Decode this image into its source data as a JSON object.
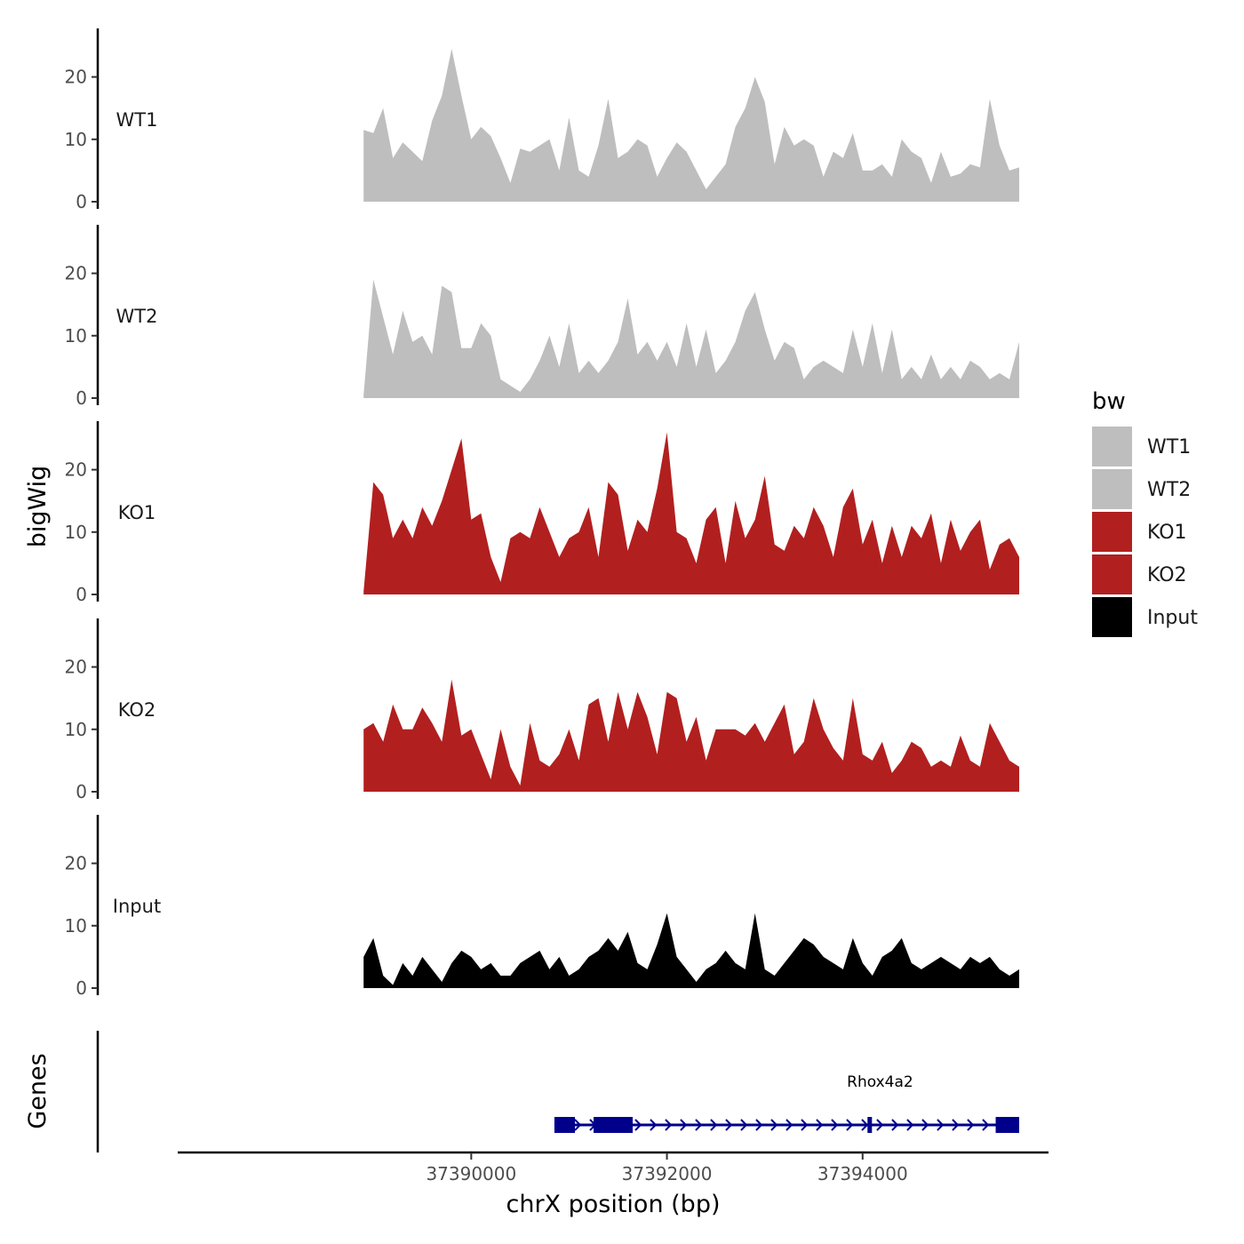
{
  "chart_data": {
    "type": "area",
    "xlabel": "chrX position (bp)",
    "ylabel": "bigWig",
    "genes_label": "Genes",
    "xlim": [
      37387000,
      37395900
    ],
    "ylim": [
      0,
      28
    ],
    "y_ticks": [
      "0",
      "10",
      "20"
    ],
    "x_ticks": [
      "37390000",
      "37392000",
      "37394000"
    ],
    "x_tick_values": [
      37390000,
      37392000,
      37394000
    ],
    "legend": {
      "title": "bw",
      "entries": [
        {
          "label": "WT1",
          "color": "#bebebe"
        },
        {
          "label": "WT2",
          "color": "#bebebe"
        },
        {
          "label": "KO1",
          "color": "#b21f1f"
        },
        {
          "label": "KO2",
          "color": "#b21f1f"
        },
        {
          "label": "Input",
          "color": "#000000"
        }
      ]
    },
    "series": [
      {
        "name": "WT1",
        "color": "#bebebe",
        "x": [
          37388900,
          37389000,
          37389100,
          37389200,
          37389300,
          37389400,
          37389500,
          37389600,
          37389700,
          37389800,
          37389900,
          37390000,
          37390100,
          37390200,
          37390300,
          37390400,
          37390500,
          37390600,
          37390700,
          37390800,
          37390900,
          37391000,
          37391100,
          37391200,
          37391300,
          37391400,
          37391500,
          37391600,
          37391700,
          37391800,
          37391900,
          37392000,
          37392100,
          37392200,
          37392300,
          37392400,
          37392500,
          37392600,
          37392700,
          37392800,
          37392900,
          37393000,
          37393100,
          37393200,
          37393300,
          37393400,
          37393500,
          37393600,
          37393700,
          37393800,
          37393900,
          37394000,
          37394100,
          37394200,
          37394300,
          37394400,
          37394500,
          37394600,
          37394700,
          37394800,
          37394900,
          37395000,
          37395100,
          37395200,
          37395300,
          37395400,
          37395500,
          37395600
        ],
        "values": [
          11.5,
          11,
          15,
          7,
          9.5,
          8,
          6.5,
          13,
          17,
          24.5,
          17,
          10,
          12,
          10.5,
          7,
          3,
          8.5,
          8,
          9,
          10,
          5,
          13.5,
          5,
          4,
          9,
          16.5,
          7,
          8,
          10,
          9,
          4,
          7,
          9.5,
          8,
          5,
          2,
          4,
          6,
          12,
          15,
          20,
          16,
          6,
          12,
          9,
          10,
          9,
          4,
          8,
          7,
          11,
          5,
          5,
          6,
          4,
          10,
          8,
          7,
          3,
          8,
          4,
          4.5,
          6,
          5.5,
          16.5,
          9,
          5,
          5.5
        ]
      },
      {
        "name": "WT2",
        "color": "#bebebe",
        "x": [
          37388900,
          37389000,
          37389100,
          37389200,
          37389300,
          37389400,
          37389500,
          37389600,
          37389700,
          37389800,
          37389900,
          37390000,
          37390100,
          37390200,
          37390300,
          37390400,
          37390500,
          37390600,
          37390700,
          37390800,
          37390900,
          37391000,
          37391100,
          37391200,
          37391300,
          37391400,
          37391500,
          37391600,
          37391700,
          37391800,
          37391900,
          37392000,
          37392100,
          37392200,
          37392300,
          37392400,
          37392500,
          37392600,
          37392700,
          37392800,
          37392900,
          37393000,
          37393100,
          37393200,
          37393300,
          37393400,
          37393500,
          37393600,
          37393700,
          37393800,
          37393900,
          37394000,
          37394100,
          37394200,
          37394300,
          37394400,
          37394500,
          37394600,
          37394700,
          37394800,
          37394900,
          37395000,
          37395100,
          37395200,
          37395300,
          37395400,
          37395500,
          37395600
        ],
        "values": [
          0.5,
          19,
          13,
          7,
          14,
          9,
          10,
          7,
          18,
          17,
          8,
          8,
          12,
          10,
          3,
          2,
          1,
          3,
          6,
          10,
          5,
          12,
          4,
          6,
          4,
          6,
          9,
          16,
          7,
          9,
          6,
          9,
          5,
          12,
          5,
          11,
          4,
          6,
          9,
          14,
          17,
          11,
          6,
          9,
          8,
          3,
          5,
          6,
          5,
          4,
          11,
          5,
          12,
          4,
          11,
          3,
          5,
          3,
          7,
          3,
          5,
          3,
          6,
          5,
          3,
          4,
          3,
          9
        ]
      },
      {
        "name": "KO1",
        "color": "#b21f1f",
        "x": [
          37388900,
          37389000,
          37389100,
          37389200,
          37389300,
          37389400,
          37389500,
          37389600,
          37389700,
          37389800,
          37389900,
          37390000,
          37390100,
          37390200,
          37390300,
          37390400,
          37390500,
          37390600,
          37390700,
          37390800,
          37390900,
          37391000,
          37391100,
          37391200,
          37391300,
          37391400,
          37391500,
          37391600,
          37391700,
          37391800,
          37391900,
          37392000,
          37392100,
          37392200,
          37392300,
          37392400,
          37392500,
          37392600,
          37392700,
          37392800,
          37392900,
          37393000,
          37393100,
          37393200,
          37393300,
          37393400,
          37393500,
          37393600,
          37393700,
          37393800,
          37393900,
          37394000,
          37394100,
          37394200,
          37394300,
          37394400,
          37394500,
          37394600,
          37394700,
          37394800,
          37394900,
          37395000,
          37395100,
          37395200,
          37395300,
          37395400,
          37395500,
          37395600
        ],
        "values": [
          0.5,
          18,
          16,
          9,
          12,
          9,
          14,
          11,
          15,
          20,
          25,
          12,
          13,
          6,
          2,
          9,
          10,
          9,
          14,
          10,
          6,
          9,
          10,
          14,
          6,
          18,
          16,
          7,
          12,
          10,
          17,
          26,
          10,
          9,
          5,
          12,
          14,
          5,
          15,
          9,
          12,
          19,
          8,
          7,
          11,
          9,
          14,
          11,
          6,
          14,
          17,
          8,
          12,
          5,
          11,
          6,
          11,
          9,
          13,
          5,
          12,
          7,
          10,
          12,
          4,
          8,
          9,
          6
        ]
      },
      {
        "name": "KO2",
        "color": "#b21f1f",
        "x": [
          37388900,
          37389000,
          37389100,
          37389200,
          37389300,
          37389400,
          37389500,
          37389600,
          37389700,
          37389800,
          37389900,
          37390000,
          37390100,
          37390200,
          37390300,
          37390400,
          37390500,
          37390600,
          37390700,
          37390800,
          37390900,
          37391000,
          37391100,
          37391200,
          37391300,
          37391400,
          37391500,
          37391600,
          37391700,
          37391800,
          37391900,
          37392000,
          37392100,
          37392200,
          37392300,
          37392400,
          37392500,
          37392600,
          37392700,
          37392800,
          37392900,
          37393000,
          37393100,
          37393200,
          37393300,
          37393400,
          37393500,
          37393600,
          37393700,
          37393800,
          37393900,
          37394000,
          37394100,
          37394200,
          37394300,
          37394400,
          37394500,
          37394600,
          37394700,
          37394800,
          37394900,
          37395000,
          37395100,
          37395200,
          37395300,
          37395400,
          37395500,
          37395600
        ],
        "values": [
          10,
          11,
          8,
          14,
          10,
          10,
          13.5,
          11,
          8,
          18,
          9,
          10,
          6,
          2,
          10,
          4,
          1,
          11,
          5,
          4,
          6,
          10,
          5,
          14,
          15,
          8,
          16,
          10,
          16,
          12,
          6,
          16,
          15,
          8,
          12,
          5,
          10,
          10,
          10,
          9,
          11,
          8,
          11,
          14,
          6,
          8,
          15,
          10,
          7,
          5,
          15,
          6,
          5,
          8,
          3,
          5,
          8,
          7,
          4,
          5,
          4,
          9,
          5,
          4,
          11,
          8,
          5,
          4
        ]
      },
      {
        "name": "Input",
        "color": "#000000",
        "x": [
          37388900,
          37389000,
          37389100,
          37389200,
          37389300,
          37389400,
          37389500,
          37389600,
          37389700,
          37389800,
          37389900,
          37390000,
          37390100,
          37390200,
          37390300,
          37390400,
          37390500,
          37390600,
          37390700,
          37390800,
          37390900,
          37391000,
          37391100,
          37391200,
          37391300,
          37391400,
          37391500,
          37391600,
          37391700,
          37391800,
          37391900,
          37392000,
          37392100,
          37392200,
          37392300,
          37392400,
          37392500,
          37392600,
          37392700,
          37392800,
          37392900,
          37393000,
          37393100,
          37393200,
          37393300,
          37393400,
          37393500,
          37393600,
          37393700,
          37393800,
          37393900,
          37394000,
          37394100,
          37394200,
          37394300,
          37394400,
          37394500,
          37394600,
          37394700,
          37394800,
          37394900,
          37395000,
          37395100,
          37395200,
          37395300,
          37395400,
          37395500,
          37395600
        ],
        "values": [
          5,
          8,
          2,
          0.5,
          4,
          2,
          5,
          3,
          1,
          4,
          6,
          5,
          3,
          4,
          2,
          2,
          4,
          5,
          6,
          3,
          5,
          2,
          3,
          5,
          6,
          8,
          6,
          9,
          4,
          3,
          7,
          12,
          5,
          3,
          1,
          3,
          4,
          6,
          4,
          3,
          12,
          3,
          2,
          4,
          6,
          8,
          7,
          5,
          4,
          3,
          8,
          4,
          2,
          5,
          6,
          8,
          4,
          3,
          4,
          5,
          4,
          3,
          5,
          4,
          5,
          3,
          2,
          3
        ]
      }
    ],
    "genes": [
      {
        "name": "Rhox4a2",
        "start": 37390850,
        "end": 37395600,
        "exons": [
          [
            37390850,
            37391060
          ],
          [
            37391250,
            37391650
          ],
          [
            37394050,
            37394090
          ],
          [
            37395360,
            37395600
          ]
        ]
      }
    ]
  }
}
